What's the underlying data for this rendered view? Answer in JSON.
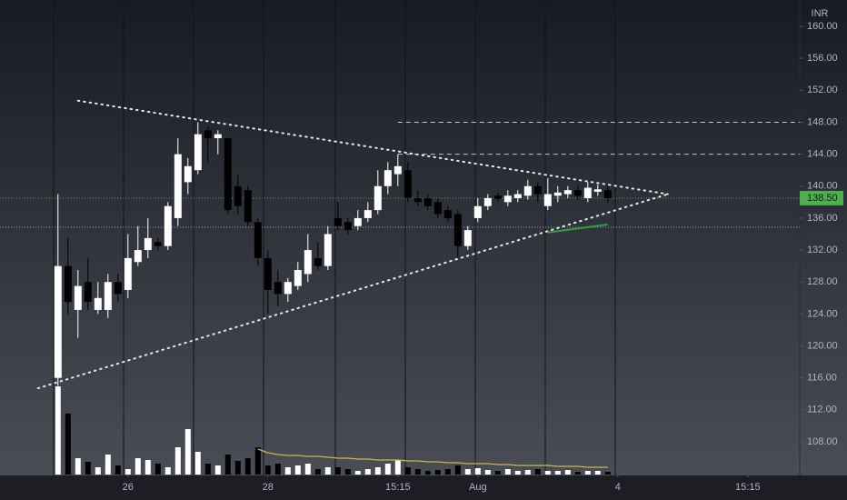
{
  "chart_data": {
    "type": "candlestick",
    "axis_label": "INR",
    "xlim": [
      -5.8,
      74.2
    ],
    "xticks": [
      {
        "value": 7,
        "label": "26"
      },
      {
        "value": 21,
        "label": "28"
      },
      {
        "value": 34,
        "label": "15:15"
      },
      {
        "value": 42,
        "label": "Aug"
      },
      {
        "value": 56,
        "label": "4"
      },
      {
        "value": 69,
        "label": "15:15"
      }
    ],
    "ylim": [
      103.9,
      163.3
    ],
    "yticks": [
      {
        "value": 108,
        "label": "108.00"
      },
      {
        "value": 112,
        "label": "112.00"
      },
      {
        "value": 116,
        "label": "116.00"
      },
      {
        "value": 120,
        "label": "120.00"
      },
      {
        "value": 124,
        "label": "124.00"
      },
      {
        "value": 128,
        "label": "128.00"
      },
      {
        "value": 132,
        "label": "132.00"
      },
      {
        "value": 136,
        "label": "136.00"
      },
      {
        "value": 140,
        "label": "140.00"
      },
      {
        "value": 144,
        "label": "144.00"
      },
      {
        "value": 148,
        "label": "148.00"
      },
      {
        "value": 152,
        "label": "152.00"
      },
      {
        "value": 156,
        "label": "156.00"
      },
      {
        "value": 160,
        "label": "160.00"
      }
    ],
    "up_color": "#ffffff",
    "down_color": "#000000",
    "open": [
      116,
      130,
      124.5,
      128,
      124.5,
      124.5,
      128,
      127,
      130.5,
      132,
      133,
      132.5,
      136,
      140.5,
      142,
      147,
      146,
      146,
      140,
      139.5,
      135.5,
      131,
      128,
      126.5,
      127.5,
      129,
      131,
      130,
      136,
      135.5,
      135,
      136,
      137,
      140,
      141.5,
      142,
      138.5,
      138.5,
      138,
      137,
      136.5,
      132.5,
      136,
      137.5,
      138.8,
      138,
      138.5,
      138.8,
      140,
      137.5,
      138.8,
      139,
      139.5,
      138.5,
      139.3,
      139.5
    ],
    "high": [
      139,
      133.5,
      129.5,
      131,
      128,
      129,
      129,
      134,
      135,
      136,
      133.5,
      138,
      146,
      143.5,
      148,
      147.5,
      147,
      146,
      141.5,
      140,
      136,
      132,
      129.5,
      128.5,
      130.5,
      134,
      133,
      135,
      138,
      136,
      137,
      138,
      142,
      143,
      144,
      143,
      139.5,
      139,
      138.5,
      137.5,
      137,
      135,
      138.5,
      139,
      139.2,
      139.5,
      139.5,
      140.8,
      140.5,
      141,
      140,
      140,
      140,
      140.5,
      140.2,
      140
    ],
    "low": [
      115,
      124,
      121,
      124.5,
      124,
      123.5,
      125.5,
      126,
      130,
      131,
      132,
      132,
      135,
      139,
      141.5,
      143,
      144,
      136.5,
      136.5,
      135,
      130,
      124,
      125,
      125.5,
      127,
      128,
      129.5,
      129.5,
      134.5,
      134,
      134.5,
      135.5,
      136.5,
      139,
      140,
      138,
      137.5,
      137,
      136,
      135.5,
      131,
      132,
      135.5,
      137,
      138,
      137.5,
      138,
      138.3,
      138,
      137,
      138,
      138.5,
      138.3,
      138,
      138.8,
      138
    ],
    "close": [
      130,
      125.5,
      127.5,
      125.5,
      126,
      128,
      126.5,
      131,
      132,
      133.5,
      132.5,
      137.5,
      144,
      142.5,
      146.5,
      146,
      146.5,
      137,
      137.5,
      135.5,
      131,
      127,
      126.5,
      128,
      129.5,
      132,
      130,
      134,
      135,
      134.5,
      136,
      137,
      140,
      142,
      142.5,
      138.5,
      138,
      137.5,
      136.5,
      136,
      132.5,
      134.5,
      137.5,
      138.5,
      138.4,
      138.8,
      139,
      140,
      139,
      139,
      139.2,
      139.5,
      138.8,
      139.8,
      139.6,
      138.5
    ],
    "volume_lim": [
      0,
      100
    ],
    "volume": [
      97,
      67,
      18,
      14,
      8,
      22,
      10,
      6,
      18,
      16,
      12,
      8,
      30,
      50,
      25,
      12,
      10,
      22,
      15,
      18,
      30,
      10,
      12,
      8,
      10,
      12,
      6,
      8,
      8,
      6,
      4,
      6,
      8,
      12,
      16,
      8,
      6,
      4,
      5,
      6,
      10,
      6,
      7,
      5,
      4,
      6,
      4,
      5,
      6,
      4,
      4,
      5,
      3,
      4,
      4,
      3
    ],
    "volume_ma": [
      null,
      null,
      null,
      null,
      null,
      null,
      null,
      null,
      null,
      null,
      null,
      null,
      null,
      null,
      null,
      null,
      null,
      null,
      null,
      null,
      28,
      24,
      22,
      21,
      21,
      20,
      20,
      19,
      18,
      18,
      17,
      17,
      16,
      16,
      16,
      15,
      15,
      14,
      14,
      13,
      13,
      12,
      12,
      12,
      11,
      11,
      10,
      10,
      10,
      10,
      9,
      9,
      9,
      8,
      8,
      8
    ],
    "volume_ma_color": "#c9b84a",
    "trendlines": [
      {
        "x": [
          2,
          61
        ],
        "y": [
          150.7,
          139
        ]
      },
      {
        "x": [
          -2,
          61
        ],
        "y": [
          114.7,
          139
        ]
      }
    ],
    "levels": [
      {
        "value": 148,
        "from": 34
      },
      {
        "value": 144,
        "from": 34
      }
    ],
    "support": 134.85,
    "green_line": {
      "x": [
        49,
        55
      ],
      "y": [
        134.2,
        135.2
      ],
      "color": "#2ea043"
    },
    "last_price": {
      "value": 138.5,
      "label": "138.50",
      "color": "#4caf50"
    }
  }
}
